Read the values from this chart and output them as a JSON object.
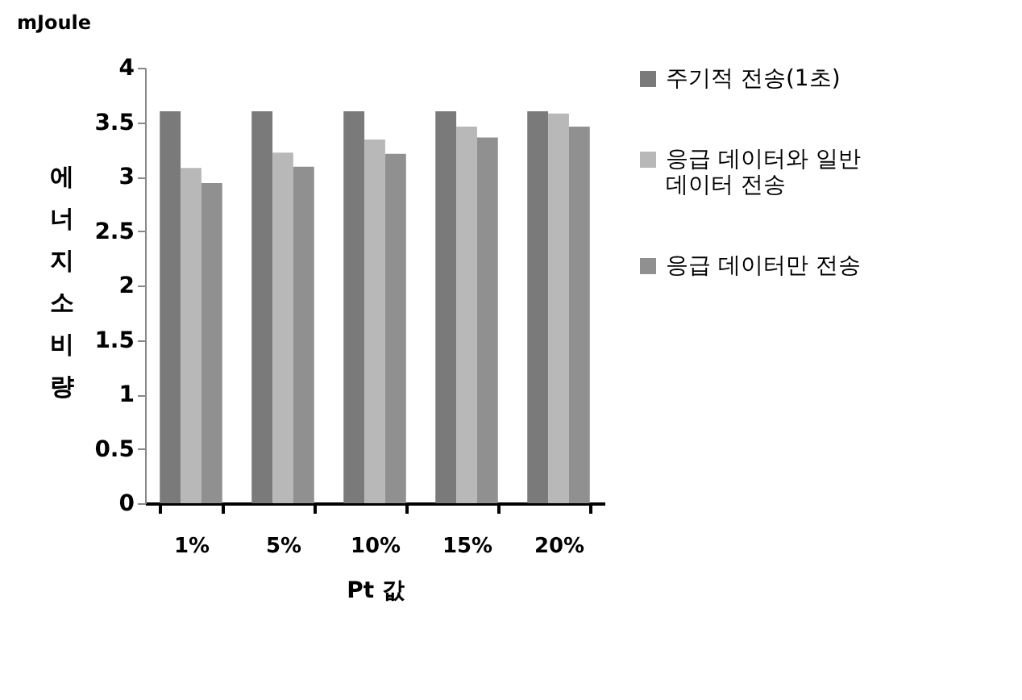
{
  "chart_data": {
    "type": "bar",
    "xlabel": "Pt 값",
    "ylabel": "에너지 소비량",
    "annotations": [
      "mJoule"
    ],
    "categories": [
      "1%",
      "5%",
      "10%",
      "15%",
      "20%"
    ],
    "series": [
      {
        "name": "주기적 전송(1초)",
        "color": "#7a7a7a",
        "values": [
          3.6,
          3.6,
          3.6,
          3.6,
          3.6
        ]
      },
      {
        "name": "응급 데이터와 일반 데이터 전송",
        "color": "#b8b8b8",
        "values": [
          3.08,
          3.22,
          3.34,
          3.46,
          3.58
        ]
      },
      {
        "name": "응급 데이터만 전송",
        "color": "#909090",
        "values": [
          2.94,
          3.09,
          3.21,
          3.36,
          3.46
        ]
      }
    ],
    "ylim": [
      0,
      4
    ],
    "yticks": [
      0,
      0.5,
      1,
      1.5,
      2,
      2.5,
      3,
      3.5,
      4
    ],
    "grid": false,
    "legend": "right"
  }
}
